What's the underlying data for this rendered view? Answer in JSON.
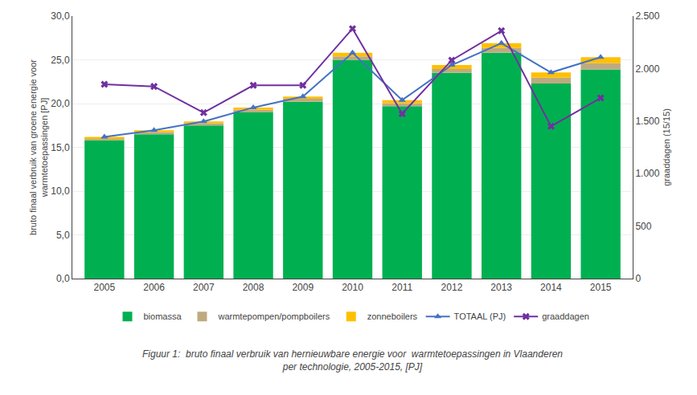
{
  "chart_data": {
    "type": "bar",
    "stacked": true,
    "categories": [
      "2005",
      "2006",
      "2007",
      "2008",
      "2009",
      "2010",
      "2011",
      "2012",
      "2013",
      "2014",
      "2015"
    ],
    "series": [
      {
        "name": "biomassa",
        "type": "bar",
        "color": "#00b050",
        "values": [
          15.8,
          16.5,
          17.5,
          19.0,
          20.2,
          25.0,
          19.7,
          23.5,
          25.8,
          22.3,
          23.9
        ]
      },
      {
        "name": "warmtepompen/pompboilers",
        "type": "bar",
        "color": "#bfaa80",
        "values": [
          0.25,
          0.25,
          0.25,
          0.3,
          0.35,
          0.4,
          0.35,
          0.45,
          0.55,
          0.65,
          0.7
        ]
      },
      {
        "name": "zonneboilers",
        "type": "bar",
        "color": "#ffc000",
        "values": [
          0.15,
          0.2,
          0.2,
          0.25,
          0.25,
          0.4,
          0.35,
          0.45,
          0.55,
          0.6,
          0.7
        ]
      },
      {
        "name": "TOTAAL (PJ)",
        "type": "line",
        "color": "#4472c4",
        "marker": "triangle-up",
        "values": [
          16.2,
          16.95,
          17.95,
          19.55,
          20.8,
          25.8,
          20.4,
          24.4,
          26.9,
          23.55,
          25.3
        ]
      },
      {
        "name": "graaddagen",
        "type": "line",
        "color": "#7030a0",
        "marker": "x",
        "axis": "y2",
        "values": [
          1850,
          1830,
          1580,
          1840,
          1840,
          2380,
          1570,
          2080,
          2360,
          1450,
          1720
        ]
      }
    ],
    "ylabel": "bruto finaal verbruik van groene energie voor\nwarmtetoepassingen [PJ]",
    "y2label": "graaddagen (15/15)",
    "ylim": [
      0,
      30
    ],
    "yticks": [
      {
        "value": 0,
        "label": "0,0"
      },
      {
        "value": 5,
        "label": "5,0"
      },
      {
        "value": 10,
        "label": "10,0"
      },
      {
        "value": 15,
        "label": "15,0"
      },
      {
        "value": 20,
        "label": "20,0"
      },
      {
        "value": 25,
        "label": "25,0"
      },
      {
        "value": 30,
        "label": "30,0"
      }
    ],
    "y2lim": [
      0,
      2500
    ],
    "y2ticks": [
      0,
      500,
      {
        "value": 1000,
        "label": "1.000"
      },
      {
        "value": 1500,
        "label": "1.500"
      },
      {
        "value": 2000,
        "label": "2.000"
      },
      {
        "value": 2500,
        "label": "2.500"
      }
    ],
    "grid": true,
    "legend": "bottom",
    "annotations": [
      {
        "text": "Figuur 1:  bruto finaal verbruik van hernieuwbare energie voor  warmtetoepassingen in Vlaanderen\nper technologie, 2005-2015, [PJ]"
      }
    ]
  }
}
